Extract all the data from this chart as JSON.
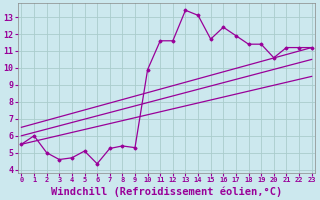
{
  "background_color": "#cce8ee",
  "grid_color": "#aacccc",
  "line_color": "#990099",
  "xlabel": "Windchill (Refroidissement éolien,°C)",
  "xlabel_fontsize": 7.5,
  "yticks": [
    4,
    5,
    6,
    7,
    8,
    9,
    10,
    11,
    12,
    13
  ],
  "xticks": [
    0,
    1,
    2,
    3,
    4,
    5,
    6,
    7,
    8,
    9,
    10,
    11,
    12,
    13,
    14,
    15,
    16,
    17,
    18,
    19,
    20,
    21,
    22,
    23
  ],
  "ylim": [
    3.8,
    13.8
  ],
  "xlim": [
    -0.3,
    23.3
  ],
  "curve1_x": [
    0,
    1,
    2,
    3,
    4,
    5,
    6,
    7,
    8,
    9,
    10,
    11,
    12,
    13,
    14,
    15,
    16,
    17,
    18,
    19,
    20,
    21,
    22,
    23
  ],
  "curve1_y": [
    5.5,
    6.0,
    5.0,
    4.6,
    4.7,
    5.1,
    4.35,
    5.25,
    5.4,
    5.3,
    9.9,
    11.6,
    11.6,
    13.4,
    13.1,
    11.7,
    12.4,
    11.9,
    11.4,
    11.4,
    10.6,
    11.2,
    11.2,
    11.2
  ],
  "trend1_x": [
    0,
    23
  ],
  "trend1_y": [
    5.5,
    9.5
  ],
  "trend2_x": [
    0,
    23
  ],
  "trend2_y": [
    6.0,
    10.5
  ],
  "trend3_x": [
    0,
    23
  ],
  "trend3_y": [
    6.5,
    11.2
  ]
}
